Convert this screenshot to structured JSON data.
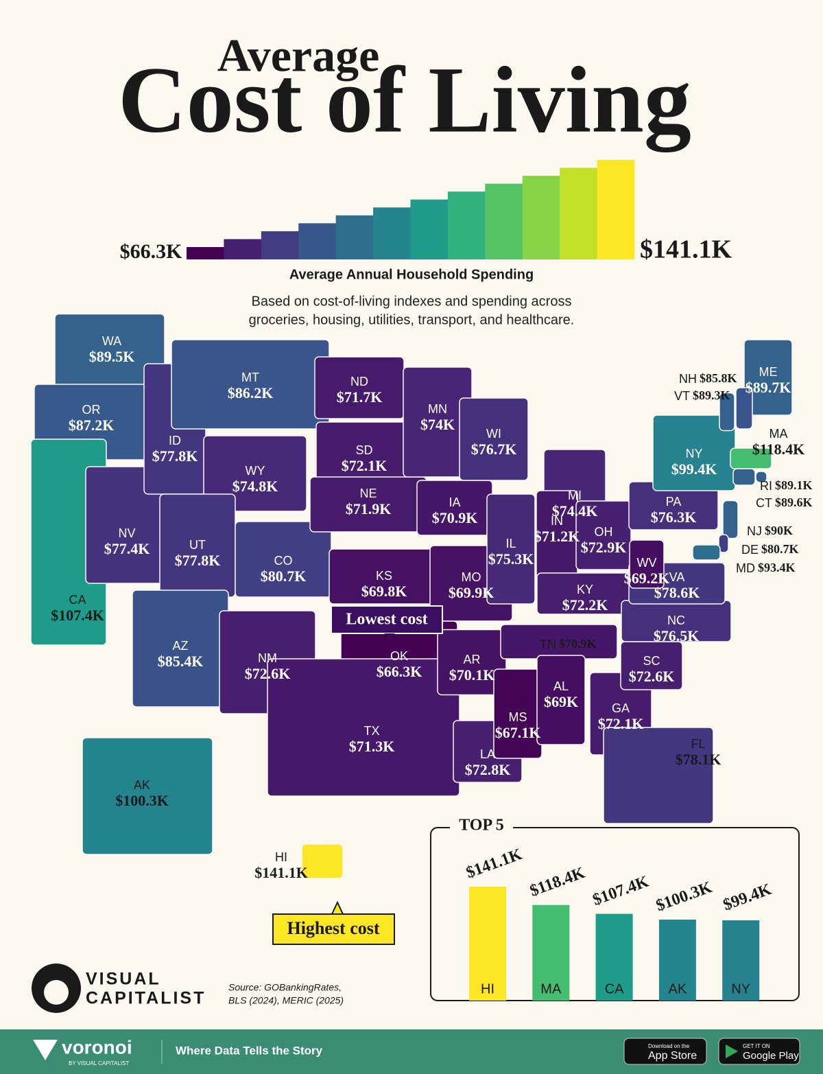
{
  "header": {
    "title_small": "Average",
    "title": "Cost of Living"
  },
  "legend": {
    "title": "Average Annual Household Spending",
    "min": 66.3,
    "max": 141.1,
    "min_label": "$66.3K",
    "max_label": "$141.1K",
    "colors": [
      "#440154",
      "#482878",
      "#3e4989",
      "#31688e",
      "#26828e",
      "#1f9e89",
      "#35b779",
      "#6ece58",
      "#b5de2b",
      "#fde725"
    ]
  },
  "note": [
    "Based on cost-of-living indexes and spending across",
    "groceries, housing, utilities, transport, and healthcare."
  ],
  "states": [
    {
      "abbr": "WA",
      "value": 89.5,
      "value_label": "$89.5K"
    },
    {
      "abbr": "OR",
      "value": 87.2,
      "value_label": "$87.2K"
    },
    {
      "abbr": "CA",
      "value": 107.4,
      "value_label": "$107.4K"
    },
    {
      "abbr": "NV",
      "value": 77.4,
      "value_label": "$77.4K"
    },
    {
      "abbr": "ID",
      "value": 77.8,
      "value_label": "$77.8K"
    },
    {
      "abbr": "MT",
      "value": 86.2,
      "value_label": "$86.2K"
    },
    {
      "abbr": "WY",
      "value": 74.8,
      "value_label": "$74.8K"
    },
    {
      "abbr": "UT",
      "value": 77.8,
      "value_label": "$77.8K"
    },
    {
      "abbr": "AZ",
      "value": 85.4,
      "value_label": "$85.4K"
    },
    {
      "abbr": "CO",
      "value": 80.7,
      "value_label": "$80.7K"
    },
    {
      "abbr": "NM",
      "value": 72.6,
      "value_label": "$72.6K"
    },
    {
      "abbr": "ND",
      "value": 71.7,
      "value_label": "$71.7K"
    },
    {
      "abbr": "SD",
      "value": 72.1,
      "value_label": "$72.1K"
    },
    {
      "abbr": "NE",
      "value": 71.9,
      "value_label": "$71.9K"
    },
    {
      "abbr": "KS",
      "value": 69.8,
      "value_label": "$69.8K"
    },
    {
      "abbr": "OK",
      "value": 66.3,
      "value_label": "$66.3K"
    },
    {
      "abbr": "TX",
      "value": 71.3,
      "value_label": "$71.3K"
    },
    {
      "abbr": "MN",
      "value": 74,
      "value_label": "$74K"
    },
    {
      "abbr": "IA",
      "value": 70.9,
      "value_label": "$70.9K"
    },
    {
      "abbr": "MO",
      "value": 69.9,
      "value_label": "$69.9K"
    },
    {
      "abbr": "AR",
      "value": 70.1,
      "value_label": "$70.1K"
    },
    {
      "abbr": "LA",
      "value": 72.8,
      "value_label": "$72.8K"
    },
    {
      "abbr": "WI",
      "value": 76.7,
      "value_label": "$76.7K"
    },
    {
      "abbr": "IL",
      "value": 75.3,
      "value_label": "$75.3K"
    },
    {
      "abbr": "MI",
      "value": 74.4,
      "value_label": "$74.4K"
    },
    {
      "abbr": "IN",
      "value": 71.2,
      "value_label": "$71.2K"
    },
    {
      "abbr": "OH",
      "value": 72.9,
      "value_label": "$72.9K"
    },
    {
      "abbr": "KY",
      "value": 72.2,
      "value_label": "$72.2K"
    },
    {
      "abbr": "TN",
      "value": 70.9,
      "value_label": "$70.9K"
    },
    {
      "abbr": "MS",
      "value": 67.1,
      "value_label": "$67.1K"
    },
    {
      "abbr": "AL",
      "value": 69,
      "value_label": "$69K"
    },
    {
      "abbr": "GA",
      "value": 72.1,
      "value_label": "$72.1K"
    },
    {
      "abbr": "FL",
      "value": 78.1,
      "value_label": "$78.1K"
    },
    {
      "abbr": "SC",
      "value": 72.6,
      "value_label": "$72.6K"
    },
    {
      "abbr": "NC",
      "value": 76.5,
      "value_label": "$76.5K"
    },
    {
      "abbr": "VA",
      "value": 78.6,
      "value_label": "$78.6K"
    },
    {
      "abbr": "WV",
      "value": 69.2,
      "value_label": "$69.2K"
    },
    {
      "abbr": "PA",
      "value": 76.3,
      "value_label": "$76.3K"
    },
    {
      "abbr": "NY",
      "value": 99.4,
      "value_label": "$99.4K"
    },
    {
      "abbr": "ME",
      "value": 89.7,
      "value_label": "$89.7K"
    },
    {
      "abbr": "NH",
      "value": 85.8,
      "value_label": "$85.8K"
    },
    {
      "abbr": "VT",
      "value": 89.3,
      "value_label": "$89.3K"
    },
    {
      "abbr": "MA",
      "value": 118.4,
      "value_label": "$118.4K"
    },
    {
      "abbr": "RI",
      "value": 89.1,
      "value_label": "$89.1K"
    },
    {
      "abbr": "CT",
      "value": 89.6,
      "value_label": "$89.6K"
    },
    {
      "abbr": "NJ",
      "value": 90,
      "value_label": "$90K"
    },
    {
      "abbr": "DE",
      "value": 80.7,
      "value_label": "$80.7K"
    },
    {
      "abbr": "MD",
      "value": 93.4,
      "value_label": "$93.4K"
    },
    {
      "abbr": "AK",
      "value": 100.3,
      "value_label": "$100.3K"
    },
    {
      "abbr": "HI",
      "value": 141.1,
      "value_label": "$141.1K"
    }
  ],
  "callouts": {
    "lowest": "Lowest cost",
    "highest": "Highest cost"
  },
  "chart_data": {
    "type": "bar",
    "title": "TOP 5",
    "categories": [
      "HI",
      "MA",
      "CA",
      "AK",
      "NY"
    ],
    "values": [
      141.1,
      118.4,
      107.4,
      100.3,
      99.4
    ],
    "value_labels": [
      "$141.1K",
      "$118.4K",
      "$107.4K",
      "$100.3K",
      "$99.4K"
    ]
  },
  "source": [
    "Source: GOBankingRates,",
    "BLS (2024), MERIC (2025)"
  ],
  "brand": [
    "VISUAL",
    "CAPITALIST"
  ],
  "footer": {
    "logo": "voronoi",
    "logo_sub": "BY VISUAL CAPITALIST",
    "tagline": "Where Data Tells the Story",
    "app_store_small": "Download on the",
    "app_store": "App Store",
    "google_small": "GET IT ON",
    "google": "Google Play"
  }
}
